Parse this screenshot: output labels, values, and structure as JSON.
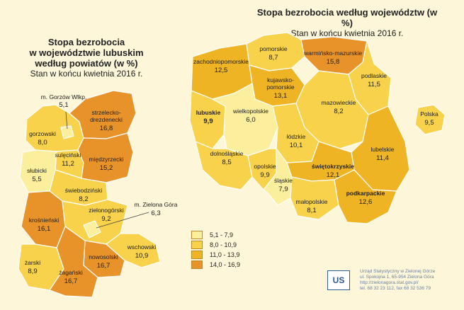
{
  "left_title": {
    "l1": "Stopa bezrobocia",
    "l2": "w województwie lubuskim",
    "l3": "według powiatów (w %)",
    "sub": "Stan w końcu kwietnia 2016 r."
  },
  "right_title": {
    "l1": "Stopa bezrobocia według województw (w %)",
    "sub": "Stan w końcu kwietnia 2016 r."
  },
  "powiaty": [
    {
      "name": "gorzowski",
      "value": "8,0"
    },
    {
      "name": "m. Gorzów Wlkp.",
      "value": "5,1"
    },
    {
      "name": "strzelecko-drezdenecki",
      "l1": "strzelecko-",
      "l2": "drezdenecki",
      "value": "16,8"
    },
    {
      "name": "słubicki",
      "value": "5,5"
    },
    {
      "name": "sulęciński",
      "value": "11,2"
    },
    {
      "name": "międzyrzecki",
      "value": "15,2"
    },
    {
      "name": "świebodziński",
      "value": "8,2"
    },
    {
      "name": "krośnieński",
      "value": "16,1"
    },
    {
      "name": "zielonogórski",
      "value": "9,2"
    },
    {
      "name": "m. Zielona Góra",
      "value": "6,3"
    },
    {
      "name": "wschowski",
      "value": "10,9"
    },
    {
      "name": "nowosolski",
      "value": "16,7"
    },
    {
      "name": "żarski",
      "value": "8,9"
    },
    {
      "name": "żagański",
      "value": "16,7"
    }
  ],
  "wojewodztwa": [
    {
      "name": "pomorskie",
      "value": "8,7"
    },
    {
      "name": "warmińsko-mazurskie",
      "value": "15,8"
    },
    {
      "name": "zachodniopomorskie",
      "value": "12,5"
    },
    {
      "name": "kujawsko-pomorskie",
      "l1": "kujawsko-",
      "l2": "pomorskie",
      "value": "13,1"
    },
    {
      "name": "podlaskie",
      "value": "11,5"
    },
    {
      "name": "lubuskie",
      "value": "9,9"
    },
    {
      "name": "wielkopolskie",
      "value": "6,0"
    },
    {
      "name": "mazowieckie",
      "value": "8,2"
    },
    {
      "name": "łódzkie",
      "value": "10,1"
    },
    {
      "name": "dolnośląskie",
      "value": "8,5"
    },
    {
      "name": "lubelskie",
      "value": "11,4"
    },
    {
      "name": "opolskie",
      "value": "9,9"
    },
    {
      "name": "śląskie",
      "value": "7,9"
    },
    {
      "name": "świętokrzyskie",
      "value": "12,1"
    },
    {
      "name": "małopolskie",
      "value": "8,1"
    },
    {
      "name": "podkarpackie",
      "value": "12,6"
    },
    {
      "name": "Polska",
      "value": "9,5"
    }
  ],
  "legend": [
    {
      "range": "5,1 - 7,9",
      "color": "#fbee9d"
    },
    {
      "range": "8,0 - 10,9",
      "color": "#f7d24a"
    },
    {
      "range": "11,0 - 13,9",
      "color": "#efb424"
    },
    {
      "range": "14,0 - 16,9",
      "color": "#e8922a"
    }
  ],
  "footer": {
    "logo": "US",
    "l1": "Urząd Statystyczny w Zielonej Górze",
    "l2": "ul. Spokojna 1, 65-954 Zielona Góra",
    "l3": "http://zielonagora.stat.gov.pl/",
    "l4": "tel. 68 32 23 112, fax 68 32 536 79"
  }
}
